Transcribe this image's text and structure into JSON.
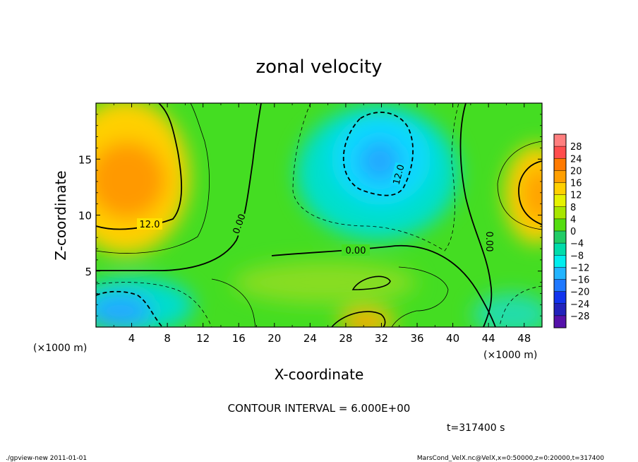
{
  "chart_data": {
    "type": "heatmap",
    "title": "zonal velocity",
    "xlabel": "X-coordinate",
    "ylabel": "Z-coordinate",
    "x_unit": "(×1000 m)",
    "y_unit": "(×1000 m)",
    "xlim": [
      0,
      50
    ],
    "ylim": [
      0,
      20
    ],
    "x_ticks": [
      4,
      8,
      12,
      16,
      20,
      24,
      28,
      32,
      36,
      40,
      44,
      48
    ],
    "y_ticks": [
      5,
      10,
      15
    ],
    "colorbar": {
      "labels": [
        "28",
        "24",
        "20",
        "16",
        "12",
        "8",
        "4",
        "0",
        "−4",
        "−8",
        "−12",
        "−16",
        "−20",
        "−24",
        "−28"
      ],
      "values": [
        28,
        24,
        20,
        16,
        12,
        8,
        4,
        0,
        -4,
        -8,
        -12,
        -16,
        -20,
        -24,
        -28
      ],
      "colors": [
        "#ff7f7f",
        "#ff4d4d",
        "#ff7a00",
        "#ff9f00",
        "#ffd000",
        "#e6f200",
        "#a8e600",
        "#55dd11",
        "#22cc66",
        "#00dcaa",
        "#00eeee",
        "#22b4ff",
        "#1f78ff",
        "#1133ee",
        "#2222bb",
        "#5511aa"
      ]
    },
    "grid": false,
    "legend": "colorbar-right",
    "contour_labels": [
      "12.0",
      "0.00",
      "0.00",
      "12.0",
      "0.00"
    ],
    "field_features": [
      {
        "kind": "max",
        "x": 4,
        "z": 13,
        "value": 16
      },
      {
        "kind": "max",
        "x": 49,
        "z": 12,
        "value": 14
      },
      {
        "kind": "min",
        "x": 32,
        "z": 15,
        "value": -14
      },
      {
        "kind": "min",
        "x": 3,
        "z": 1.5,
        "value": -14
      },
      {
        "kind": "max",
        "x": 30,
        "z": 0.5,
        "value": 14
      }
    ]
  },
  "annotations": {
    "contour_interval": "CONTOUR INTERVAL = 6.000E+00",
    "time": "t=317400 s",
    "footer_left": "./gpview-new  2011-01-01",
    "footer_right": "MarsCond_VelX.nc@VelX,x=0:50000,z=0:20000,t=317400"
  }
}
